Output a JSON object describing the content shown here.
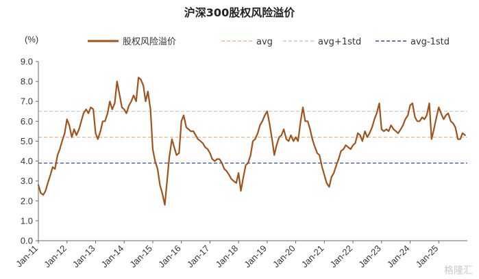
{
  "chart_data": {
    "type": "line",
    "title": "沪深300股权风险溢价",
    "unit_label": "(%)",
    "ylim": [
      0.0,
      9.0
    ],
    "y_ticks": [
      "0.0",
      "1.0",
      "2.0",
      "3.0",
      "4.0",
      "5.0",
      "6.0",
      "7.0",
      "8.0",
      "9.0"
    ],
    "x_ticks": [
      "Jan-11",
      "Jan-12",
      "Jan-13",
      "Jan-14",
      "Jan-15",
      "Jan-16",
      "Jan-17",
      "Jan-18",
      "Jan-19",
      "Jan-20",
      "Jan-21",
      "Jan-22",
      "Jan-23",
      "Jan-24",
      "Jan-25"
    ],
    "x_range": [
      2011.0,
      2026.0
    ],
    "series": [
      {
        "name": "股权风险溢价",
        "color": "#a0521a",
        "points": [
          [
            2011.0,
            2.8
          ],
          [
            2011.08,
            2.4
          ],
          [
            2011.17,
            2.3
          ],
          [
            2011.25,
            2.5
          ],
          [
            2011.33,
            2.9
          ],
          [
            2011.42,
            3.3
          ],
          [
            2011.5,
            3.7
          ],
          [
            2011.58,
            3.6
          ],
          [
            2011.67,
            4.3
          ],
          [
            2011.75,
            4.6
          ],
          [
            2011.83,
            5.0
          ],
          [
            2011.92,
            5.4
          ],
          [
            2012.0,
            6.1
          ],
          [
            2012.08,
            5.8
          ],
          [
            2012.17,
            5.2
          ],
          [
            2012.25,
            5.6
          ],
          [
            2012.33,
            5.3
          ],
          [
            2012.42,
            5.6
          ],
          [
            2012.5,
            6.0
          ],
          [
            2012.58,
            6.4
          ],
          [
            2012.67,
            6.6
          ],
          [
            2012.75,
            6.4
          ],
          [
            2012.83,
            6.7
          ],
          [
            2012.92,
            6.6
          ],
          [
            2013.0,
            5.4
          ],
          [
            2013.08,
            5.1
          ],
          [
            2013.17,
            5.5
          ],
          [
            2013.25,
            6.0
          ],
          [
            2013.33,
            6.0
          ],
          [
            2013.42,
            6.4
          ],
          [
            2013.5,
            7.0
          ],
          [
            2013.58,
            6.6
          ],
          [
            2013.67,
            6.9
          ],
          [
            2013.75,
            8.0
          ],
          [
            2013.83,
            7.4
          ],
          [
            2013.92,
            6.7
          ],
          [
            2014.0,
            6.6
          ],
          [
            2014.08,
            6.4
          ],
          [
            2014.17,
            6.8
          ],
          [
            2014.25,
            7.0
          ],
          [
            2014.33,
            7.3
          ],
          [
            2014.42,
            7.0
          ],
          [
            2014.5,
            8.2
          ],
          [
            2014.58,
            8.1
          ],
          [
            2014.67,
            7.8
          ],
          [
            2014.75,
            7.0
          ],
          [
            2014.83,
            7.5
          ],
          [
            2014.92,
            6.6
          ],
          [
            2015.0,
            4.6
          ],
          [
            2015.08,
            4.0
          ],
          [
            2015.17,
            3.6
          ],
          [
            2015.25,
            2.8
          ],
          [
            2015.33,
            2.4
          ],
          [
            2015.42,
            1.8
          ],
          [
            2015.5,
            3.0
          ],
          [
            2015.58,
            4.2
          ],
          [
            2015.67,
            5.1
          ],
          [
            2015.75,
            4.7
          ],
          [
            2015.83,
            4.3
          ],
          [
            2015.92,
            4.4
          ],
          [
            2016.0,
            6.0
          ],
          [
            2016.08,
            6.3
          ],
          [
            2016.17,
            5.7
          ],
          [
            2016.25,
            5.6
          ],
          [
            2016.33,
            5.5
          ],
          [
            2016.42,
            5.5
          ],
          [
            2016.5,
            5.3
          ],
          [
            2016.58,
            5.1
          ],
          [
            2016.67,
            5.0
          ],
          [
            2016.75,
            4.9
          ],
          [
            2016.83,
            4.7
          ],
          [
            2016.92,
            4.6
          ],
          [
            2017.0,
            4.4
          ],
          [
            2017.08,
            4.1
          ],
          [
            2017.17,
            4.0
          ],
          [
            2017.25,
            4.1
          ],
          [
            2017.33,
            4.1
          ],
          [
            2017.42,
            3.9
          ],
          [
            2017.5,
            3.6
          ],
          [
            2017.58,
            3.5
          ],
          [
            2017.67,
            3.3
          ],
          [
            2017.75,
            3.1
          ],
          [
            2017.83,
            3.0
          ],
          [
            2017.92,
            2.9
          ],
          [
            2018.0,
            3.4
          ],
          [
            2018.08,
            2.5
          ],
          [
            2018.17,
            3.2
          ],
          [
            2018.25,
            3.8
          ],
          [
            2018.33,
            3.9
          ],
          [
            2018.42,
            4.3
          ],
          [
            2018.5,
            5.0
          ],
          [
            2018.58,
            5.1
          ],
          [
            2018.67,
            5.4
          ],
          [
            2018.75,
            5.8
          ],
          [
            2018.83,
            6.0
          ],
          [
            2018.92,
            6.3
          ],
          [
            2019.0,
            6.5
          ],
          [
            2019.08,
            5.9
          ],
          [
            2019.17,
            5.1
          ],
          [
            2019.25,
            4.3
          ],
          [
            2019.33,
            4.8
          ],
          [
            2019.42,
            5.2
          ],
          [
            2019.5,
            5.3
          ],
          [
            2019.58,
            5.6
          ],
          [
            2019.67,
            5.1
          ],
          [
            2019.75,
            5.0
          ],
          [
            2019.83,
            5.3
          ],
          [
            2019.92,
            5.0
          ],
          [
            2020.0,
            5.2
          ],
          [
            2020.08,
            5.0
          ],
          [
            2020.17,
            6.0
          ],
          [
            2020.25,
            6.7
          ],
          [
            2020.33,
            6.0
          ],
          [
            2020.42,
            6.0
          ],
          [
            2020.5,
            5.6
          ],
          [
            2020.58,
            5.1
          ],
          [
            2020.67,
            4.7
          ],
          [
            2020.75,
            4.4
          ],
          [
            2020.83,
            4.3
          ],
          [
            2020.92,
            3.7
          ],
          [
            2021.0,
            3.3
          ],
          [
            2021.08,
            2.9
          ],
          [
            2021.17,
            2.7
          ],
          [
            2021.25,
            3.2
          ],
          [
            2021.33,
            3.4
          ],
          [
            2021.42,
            3.8
          ],
          [
            2021.5,
            4.1
          ],
          [
            2021.58,
            4.5
          ],
          [
            2021.67,
            4.6
          ],
          [
            2021.75,
            4.8
          ],
          [
            2021.83,
            4.7
          ],
          [
            2021.92,
            4.6
          ],
          [
            2022.0,
            4.8
          ],
          [
            2022.08,
            4.9
          ],
          [
            2022.17,
            5.4
          ],
          [
            2022.25,
            5.3
          ],
          [
            2022.33,
            5.0
          ],
          [
            2022.42,
            5.5
          ],
          [
            2022.5,
            5.2
          ],
          [
            2022.58,
            5.4
          ],
          [
            2022.67,
            5.7
          ],
          [
            2022.75,
            6.1
          ],
          [
            2022.83,
            6.4
          ],
          [
            2022.92,
            6.9
          ],
          [
            2023.0,
            5.6
          ],
          [
            2023.08,
            5.5
          ],
          [
            2023.17,
            5.6
          ],
          [
            2023.25,
            5.5
          ],
          [
            2023.33,
            5.8
          ],
          [
            2023.42,
            5.6
          ],
          [
            2023.5,
            5.5
          ],
          [
            2023.58,
            5.4
          ],
          [
            2023.67,
            5.6
          ],
          [
            2023.75,
            5.8
          ],
          [
            2023.83,
            6.1
          ],
          [
            2023.92,
            6.3
          ],
          [
            2024.0,
            6.8
          ],
          [
            2024.08,
            6.9
          ],
          [
            2024.17,
            6.2
          ],
          [
            2024.25,
            6.0
          ],
          [
            2024.33,
            6.0
          ],
          [
            2024.42,
            6.2
          ],
          [
            2024.5,
            6.1
          ],
          [
            2024.58,
            6.3
          ],
          [
            2024.67,
            6.9
          ],
          [
            2024.75,
            5.1
          ],
          [
            2024.83,
            5.6
          ],
          [
            2024.92,
            6.2
          ],
          [
            2025.0,
            6.7
          ],
          [
            2025.08,
            6.4
          ],
          [
            2025.17,
            6.1
          ],
          [
            2025.25,
            6.3
          ],
          [
            2025.33,
            6.4
          ],
          [
            2025.42,
            6.0
          ],
          [
            2025.5,
            5.9
          ],
          [
            2025.58,
            5.7
          ],
          [
            2025.67,
            5.1
          ],
          [
            2025.75,
            5.1
          ],
          [
            2025.83,
            5.4
          ],
          [
            2025.92,
            5.3
          ]
        ]
      },
      {
        "name": "avg",
        "color": "#f2b38d",
        "style": "dashed",
        "value": 5.2
      },
      {
        "name": "avg+1std",
        "color": "#c9c9c9",
        "style": "dashed",
        "value": 6.5
      },
      {
        "name": "avg-1std",
        "color": "#2e4b8f",
        "style": "dashed",
        "value": 3.9
      }
    ],
    "legend": {
      "placement": "top",
      "entries": [
        "股权风险溢价",
        "avg",
        "avg+1std",
        "avg-1std"
      ]
    },
    "grid": false
  },
  "watermark": "格隆汇"
}
